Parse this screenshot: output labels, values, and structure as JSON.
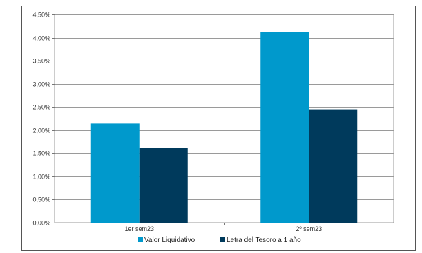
{
  "chart_data": {
    "type": "bar",
    "title": "",
    "xlabel": "",
    "ylabel": "",
    "categories": [
      "1er sem23",
      "2º sem23"
    ],
    "series": [
      {
        "name": "Valor Liquidativo",
        "values": [
          2.14,
          4.12
        ],
        "color": "#0099CC"
      },
      {
        "name": "Letra del Tesoro a 1 año",
        "values": [
          1.62,
          2.45
        ],
        "color": "#003A5C"
      }
    ],
    "ylim": [
      0,
      4.5
    ],
    "yticks": [
      "0,00%",
      "0,50%",
      "1,00%",
      "1,50%",
      "2,00%",
      "2,50%",
      "3,00%",
      "3,50%",
      "4,00%",
      "4,50%"
    ],
    "ytick_values": [
      0,
      0.5,
      1,
      1.5,
      2,
      2.5,
      3,
      3.5,
      4,
      4.5
    ],
    "grid": true,
    "legend_position": "bottom"
  }
}
